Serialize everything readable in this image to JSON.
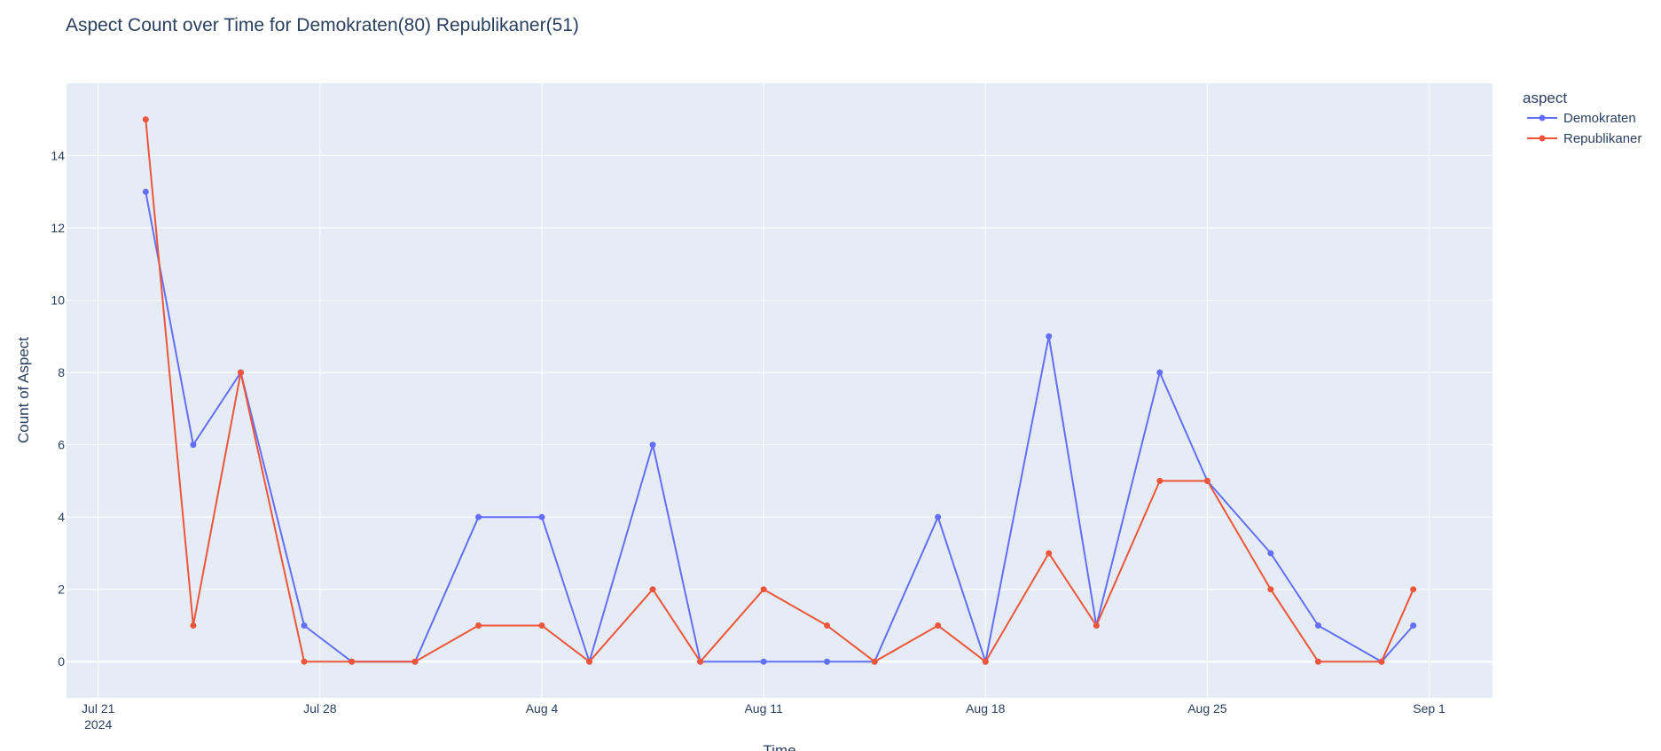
{
  "chart_data": {
    "type": "line",
    "title": "Aspect Count over Time for Demokraten(80) Republikaner(51)",
    "xlabel": "Time",
    "ylabel": "Count of Aspect",
    "x_axis_type": "date",
    "x_range": [
      "2024-07-20",
      "2024-09-03"
    ],
    "ylim": [
      -1,
      16
    ],
    "grid": true,
    "legend_position": "top-right",
    "legend_title": "aspect",
    "x_ticks": [
      {
        "date": "2024-07-21",
        "label": "Jul 21",
        "sublabel": "2024"
      },
      {
        "date": "2024-07-28",
        "label": "Jul 28",
        "sublabel": ""
      },
      {
        "date": "2024-08-04",
        "label": "Aug 4",
        "sublabel": ""
      },
      {
        "date": "2024-08-11",
        "label": "Aug 11",
        "sublabel": ""
      },
      {
        "date": "2024-08-18",
        "label": "Aug 18",
        "sublabel": ""
      },
      {
        "date": "2024-08-25",
        "label": "Aug 25",
        "sublabel": ""
      },
      {
        "date": "2024-09-01",
        "label": "Sep 1",
        "sublabel": ""
      }
    ],
    "y_ticks": [
      0,
      2,
      4,
      6,
      8,
      10,
      12,
      14
    ],
    "x": [
      "2024-07-22T12:00",
      "2024-07-24",
      "2024-07-25T12:00",
      "2024-07-27T12:00",
      "2024-07-29",
      "2024-07-31",
      "2024-08-02",
      "2024-08-04",
      "2024-08-05T12:00",
      "2024-08-07T12:00",
      "2024-08-09",
      "2024-08-11",
      "2024-08-13",
      "2024-08-14T12:00",
      "2024-08-16T12:00",
      "2024-08-18",
      "2024-08-20",
      "2024-08-21T12:00",
      "2024-08-23T12:00",
      "2024-08-25",
      "2024-08-27",
      "2024-08-28T12:00",
      "2024-08-30T12:00",
      "2024-08-31T12:00"
    ],
    "series": [
      {
        "name": "Demokraten",
        "color": "#636efa",
        "values": [
          13,
          6,
          8,
          1,
          0,
          0,
          4,
          4,
          0,
          6,
          0,
          0,
          0,
          0,
          4,
          0,
          9,
          1,
          8,
          5,
          3,
          1,
          0,
          1
        ]
      },
      {
        "name": "Republikaner",
        "color": "#ef553b",
        "values": [
          15,
          1,
          8,
          0,
          0,
          0,
          1,
          1,
          0,
          2,
          0,
          2,
          1,
          0,
          1,
          0,
          3,
          1,
          5,
          5,
          2,
          0,
          0,
          2
        ]
      }
    ]
  },
  "colors": {
    "plot_background": "#e5ecf6",
    "grid": "#ffffff",
    "text": "#2a3f5f"
  }
}
